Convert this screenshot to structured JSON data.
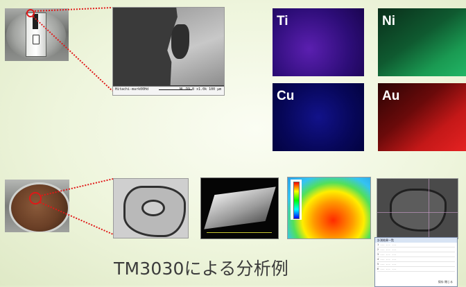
{
  "caption": "TM3030による分析例",
  "sem_top": {
    "footer_left": "Hitachi-mark00Hd",
    "footer_right": "NL D9.8 x1.0k 100 μm"
  },
  "eds_maps": [
    {
      "element": "Ti",
      "color": "#5b1fb0"
    },
    {
      "element": "Ni",
      "color": "#1a9a52"
    },
    {
      "element": "Cu",
      "color": "#12128a"
    },
    {
      "element": "Au",
      "color": "#c41818"
    }
  ],
  "report_window": {
    "title": "計測結果一覧",
    "rows": [
      "1   ...   ...   ...",
      "2   ...   ...   ...",
      "3   ...   ...   ...",
      "4   ...   ...   ...",
      "5   ...   ...   ...",
      "6   ...   ...   ..."
    ],
    "buttons": "保存   閉じる"
  },
  "accent": {
    "zoom_line": "#e01818"
  }
}
